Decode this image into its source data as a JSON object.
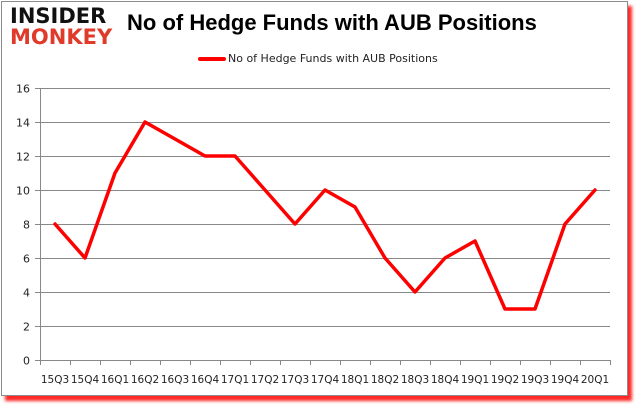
{
  "logo": {
    "line1": "INSIDER",
    "line2": "MONKEY"
  },
  "colors": {
    "series": "#ff0000",
    "grid": "#888888",
    "logo_dark": "#111111",
    "logo_red": "#e03a2b",
    "shadow": "#ff0000"
  },
  "chart_data": {
    "type": "line",
    "title": "No of Hedge Funds with AUB Positions",
    "xlabel": "",
    "ylabel": "",
    "ylim": [
      0,
      16
    ],
    "yticks": [
      0,
      2,
      4,
      6,
      8,
      10,
      12,
      14,
      16
    ],
    "grid": true,
    "legend_position": "top",
    "categories": [
      "15Q3",
      "15Q4",
      "16Q1",
      "16Q2",
      "16Q3",
      "16Q4",
      "17Q1",
      "17Q2",
      "17Q3",
      "17Q4",
      "18Q1",
      "18Q2",
      "18Q3",
      "18Q4",
      "19Q1",
      "19Q2",
      "19Q3",
      "19Q4",
      "20Q1"
    ],
    "series": [
      {
        "name": "No of Hedge Funds with AUB Positions",
        "color": "#ff0000",
        "values": [
          8,
          6,
          11,
          14,
          13,
          12,
          12,
          10,
          8,
          10,
          9,
          6,
          4,
          6,
          7,
          3,
          3,
          8,
          10
        ]
      }
    ]
  }
}
